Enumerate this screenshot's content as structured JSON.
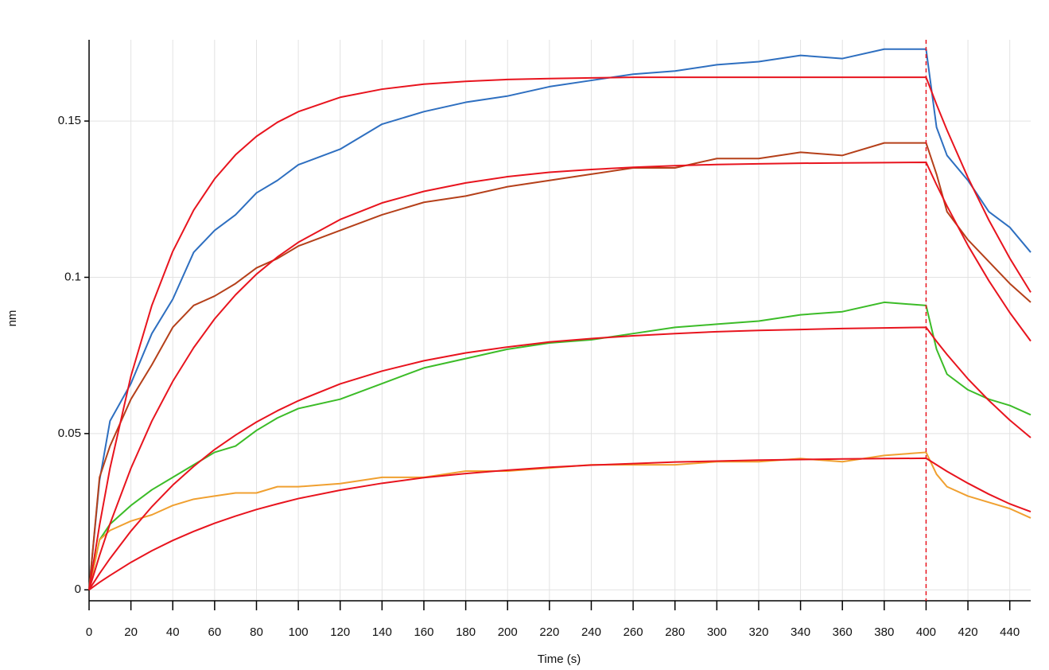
{
  "chart_data": {
    "type": "line",
    "xlabel": "Time (s)",
    "ylabel": "nm",
    "xlim": [
      0,
      450
    ],
    "ylim": [
      -0.0035,
      0.176
    ],
    "xticks": [
      0,
      20,
      40,
      60,
      80,
      100,
      120,
      140,
      160,
      180,
      200,
      220,
      240,
      260,
      280,
      300,
      320,
      340,
      360,
      380,
      400,
      420,
      440
    ],
    "yticks": [
      0,
      0.05,
      0.1,
      0.15
    ],
    "grid": true,
    "x": [
      0,
      5,
      10,
      20,
      30,
      40,
      50,
      60,
      70,
      80,
      90,
      100,
      120,
      140,
      160,
      180,
      200,
      220,
      240,
      260,
      280,
      300,
      320,
      340,
      360,
      380,
      400,
      405,
      410,
      420,
      430,
      440,
      450
    ],
    "series": [
      {
        "color": "#2e6fc0",
        "values": [
          0,
          0.035,
          0.054,
          0.066,
          0.082,
          0.093,
          0.108,
          0.115,
          0.12,
          0.127,
          0.131,
          0.136,
          0.141,
          0.149,
          0.153,
          0.156,
          0.158,
          0.161,
          0.163,
          0.165,
          0.166,
          0.168,
          0.169,
          0.171,
          0.17,
          0.173,
          0.173,
          0.148,
          0.139,
          0.131,
          0.121,
          0.116,
          0.108
        ]
      },
      {
        "color": "#b5401a",
        "values": [
          0,
          0.036,
          0.046,
          0.061,
          0.072,
          0.084,
          0.091,
          0.094,
          0.098,
          0.103,
          0.106,
          0.11,
          0.115,
          0.12,
          0.124,
          0.126,
          0.129,
          0.131,
          0.133,
          0.135,
          0.135,
          0.138,
          0.138,
          0.14,
          0.139,
          0.143,
          0.143,
          0.133,
          0.121,
          0.112,
          0.105,
          0.098,
          0.092
        ]
      },
      {
        "color": "#3cbc28",
        "values": [
          0,
          0.016,
          0.021,
          0.027,
          0.032,
          0.036,
          0.04,
          0.044,
          0.046,
          0.051,
          0.055,
          0.058,
          0.061,
          0.066,
          0.071,
          0.074,
          0.077,
          0.079,
          0.08,
          0.082,
          0.084,
          0.085,
          0.086,
          0.088,
          0.089,
          0.092,
          0.091,
          0.077,
          0.069,
          0.064,
          0.061,
          0.059,
          0.056
        ]
      },
      {
        "color": "#f0a030",
        "values": [
          0,
          0.016,
          0.019,
          0.022,
          0.024,
          0.027,
          0.029,
          0.03,
          0.031,
          0.031,
          0.033,
          0.033,
          0.034,
          0.036,
          0.036,
          0.038,
          0.038,
          0.039,
          0.04,
          0.04,
          0.04,
          0.041,
          0.041,
          0.042,
          0.041,
          0.043,
          0.044,
          0.037,
          0.033,
          0.03,
          0.028,
          0.026,
          0.023
        ]
      },
      {
        "color": "#e8141e",
        "values": [
          0,
          0.0207,
          0.0389,
          0.0684,
          0.091,
          0.1083,
          0.1215,
          0.1315,
          0.1392,
          0.1451,
          0.1496,
          0.153,
          0.1576,
          0.1602,
          0.1618,
          0.1627,
          0.1633,
          0.1636,
          0.1638,
          0.164,
          0.164,
          0.164,
          0.164,
          0.164,
          0.164,
          0.164,
          0.164,
          0.1553,
          0.1471,
          0.1319,
          0.1183,
          0.1061,
          0.0952
        ]
      },
      {
        "color": "#e8141e",
        "values": [
          0,
          0.011,
          0.0211,
          0.0389,
          0.054,
          0.0667,
          0.0775,
          0.0867,
          0.0944,
          0.101,
          0.1065,
          0.1112,
          0.1185,
          0.1238,
          0.1275,
          0.1302,
          0.1322,
          0.1336,
          0.1345,
          0.1352,
          0.1357,
          0.1361,
          0.1363,
          0.1365,
          0.1366,
          0.1367,
          0.1368,
          0.1296,
          0.1228,
          0.1102,
          0.0989,
          0.0887,
          0.0796
        ]
      },
      {
        "color": "#e8141e",
        "values": [
          0,
          0.0052,
          0.01,
          0.0188,
          0.0266,
          0.0335,
          0.0395,
          0.0449,
          0.0495,
          0.0537,
          0.0573,
          0.0605,
          0.0659,
          0.07,
          0.0733,
          0.0758,
          0.0777,
          0.0793,
          0.0804,
          0.0813,
          0.082,
          0.0826,
          0.083,
          0.0833,
          0.0836,
          0.0838,
          0.084,
          0.0795,
          0.0753,
          0.0675,
          0.0606,
          0.0543,
          0.0487
        ]
      },
      {
        "color": "#e8141e",
        "values": [
          0,
          0.0024,
          0.0046,
          0.0088,
          0.0125,
          0.0158,
          0.0187,
          0.0213,
          0.0236,
          0.0257,
          0.0275,
          0.0292,
          0.0319,
          0.0341,
          0.0359,
          0.0372,
          0.0383,
          0.0392,
          0.0399,
          0.0404,
          0.0409,
          0.0412,
          0.0415,
          0.0417,
          0.0419,
          0.042,
          0.0421,
          0.04,
          0.0379,
          0.0341,
          0.0306,
          0.0275,
          0.025
        ]
      }
    ],
    "vlines": [
      {
        "x": 400,
        "color": "#e8141e",
        "dashed": true
      }
    ]
  }
}
